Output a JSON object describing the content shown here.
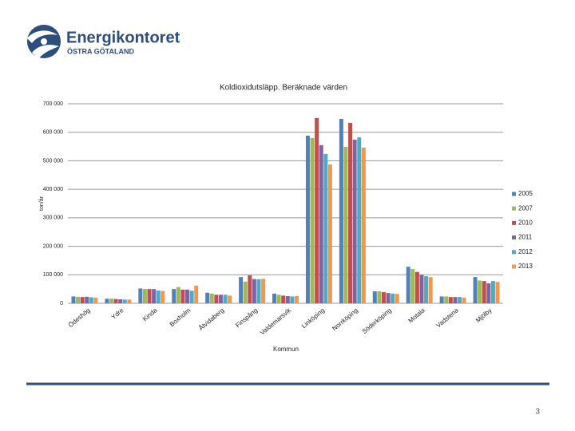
{
  "logo": {
    "name": "Energikontoret",
    "region": "ÖSTRA GÖTALAND"
  },
  "page_number": "3",
  "chart_data": {
    "type": "bar",
    "title": "Koldioxidutsläpp. Beräknade värden",
    "y_label": "ton/år",
    "x_label": "Kommun",
    "categories": [
      "Ödeshög",
      "Ydre",
      "Kinda",
      "Boxholm",
      "Åtvidaberg",
      "Finspång",
      "Valdemarsvik",
      "Linköping",
      "Norrköping",
      "Söderköping",
      "Motala",
      "Vadstena",
      "Mjölby"
    ],
    "series": [
      {
        "name": "2005",
        "color": "#4f81bd",
        "values": [
          24000,
          16000,
          52000,
          50000,
          37000,
          92000,
          34000,
          588000,
          647000,
          42000,
          128000,
          24000,
          92000
        ]
      },
      {
        "name": "2007",
        "color": "#9bbb59",
        "values": [
          23000,
          16000,
          50000,
          57000,
          34000,
          76000,
          30000,
          580000,
          549000,
          42000,
          120000,
          24000,
          80000
        ]
      },
      {
        "name": "2010",
        "color": "#c0504d",
        "values": [
          22000,
          15000,
          50000,
          48000,
          30000,
          98000,
          27000,
          650000,
          633000,
          39000,
          110000,
          22000,
          78000
        ]
      },
      {
        "name": "2011",
        "color": "#8064a2",
        "values": [
          23000,
          14000,
          50000,
          48000,
          30000,
          85000,
          25000,
          555000,
          574000,
          36000,
          100000,
          22000,
          70000
        ]
      },
      {
        "name": "2012",
        "color": "#4bacc6",
        "values": [
          21000,
          13000,
          45000,
          44000,
          30000,
          84000,
          24000,
          524000,
          582000,
          34000,
          95000,
          22000,
          78000
        ]
      },
      {
        "name": "2013",
        "color": "#f79646",
        "values": [
          20000,
          13000,
          43000,
          62000,
          27000,
          86000,
          25000,
          487000,
          546000,
          33000,
          92000,
          20000,
          75000
        ]
      }
    ],
    "ylim": [
      0,
      700000
    ],
    "yticks": [
      0,
      {
        "value": 100000,
        "label": "100 000"
      },
      {
        "value": 200000,
        "label": "200 000"
      },
      {
        "value": 300000,
        "label": "300 000"
      },
      {
        "value": 400000,
        "label": "400 000"
      },
      {
        "value": 500000,
        "label": "500 000"
      },
      {
        "value": 600000,
        "label": "600 000"
      },
      {
        "value": 700000,
        "label": "700 000"
      }
    ],
    "grid": true,
    "legend": "right"
  }
}
